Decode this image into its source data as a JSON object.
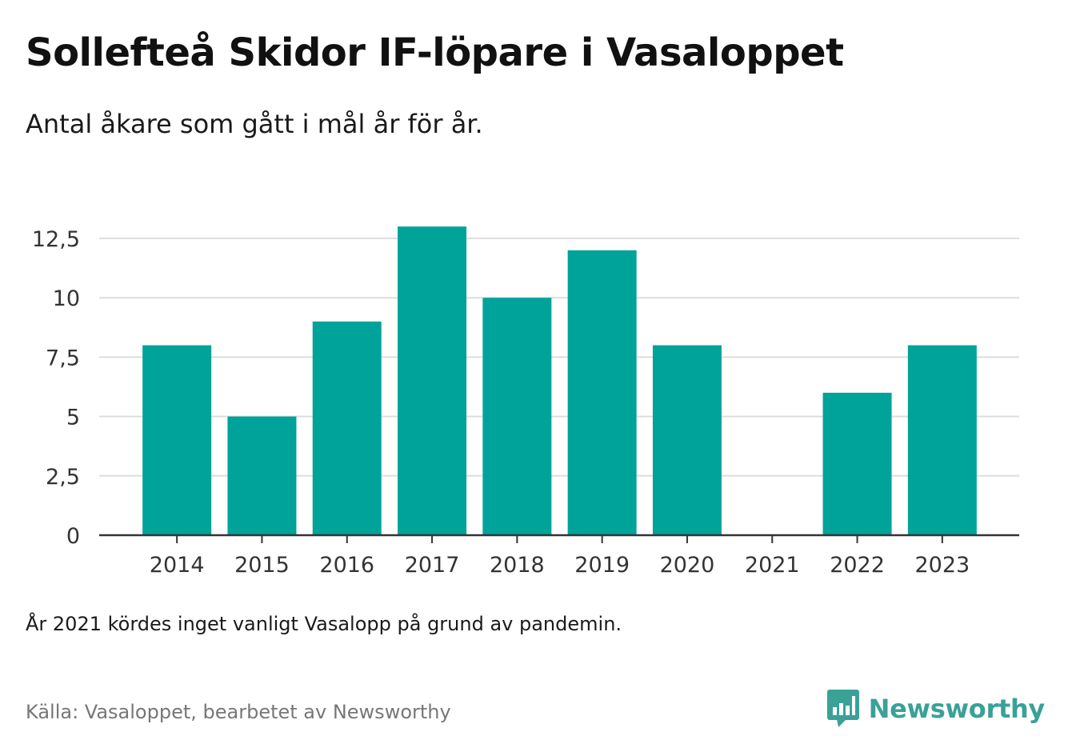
{
  "title": "Sollefteå Skidor IF-löpare i Vasaloppet",
  "subtitle": "Antal åkare som gått i mål år för år.",
  "note": "År 2021 kördes inget vanligt Vasalopp på grund av pandemin.",
  "source": "Källa: Vasaloppet, bearbetet av Newsworthy",
  "brand": {
    "name": "Newsworthy",
    "icon": "newsworthy-logo-icon",
    "color": "#3aa197"
  },
  "colors": {
    "bar": "#00a39a",
    "grid": "#dddddd",
    "axis": "#333333"
  },
  "chart_data": {
    "type": "bar",
    "categories": [
      "2014",
      "2015",
      "2016",
      "2017",
      "2018",
      "2019",
      "2020",
      "2021",
      "2022",
      "2023"
    ],
    "values": [
      8,
      5,
      9,
      13,
      10,
      12,
      8,
      null,
      6,
      8
    ],
    "ylim": [
      0,
      12.5
    ],
    "yticks": [
      0,
      2.5,
      5,
      7.5,
      10,
      12.5
    ],
    "ytick_labels": [
      "0",
      "2,5",
      "5",
      "7,5",
      "10",
      "12,5"
    ],
    "grid": true,
    "legend": "none"
  }
}
